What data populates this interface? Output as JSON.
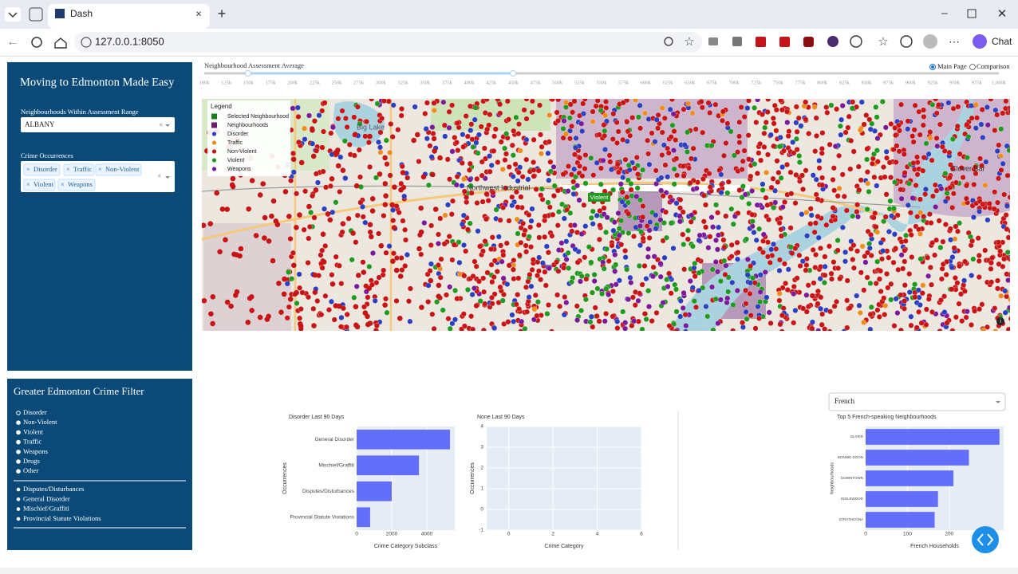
{
  "browser": {
    "tab_title": "Dash",
    "url": "127.0.0.1:8050",
    "chat": "Chat"
  },
  "sidebar": {
    "title": "Moving to Edmonton Made Easy",
    "range_label": "Neighbourhoods Within Assessment Range",
    "neighbourhood": "ALBANY",
    "crime_label": "Crime Occurrences",
    "crime_tags": [
      "Disorder",
      "Traffic",
      "Non-Violent",
      "Violent",
      "Weapons"
    ]
  },
  "filter": {
    "title": "Greater Edmonton Crime Filter",
    "options": [
      "Disorder",
      "Non-Violent",
      "Violent",
      "Traffic",
      "Weapons",
      "Drugs",
      "Other"
    ],
    "sub_options": [
      "Disputes/Disturbances",
      "General Disorder",
      "Mischief/Graffiti",
      "Provincial Statute Violations"
    ]
  },
  "slider": {
    "label": "Neighbourhood Assessment Average",
    "marks": [
      "100k",
      "125k",
      "150k",
      "175k",
      "200k",
      "225k",
      "250k",
      "275k",
      "300k",
      "325k",
      "350k",
      "375k",
      "400k",
      "425k",
      "450k",
      "475k",
      "500k",
      "525k",
      "550k",
      "575k",
      "600k",
      "625k",
      "650k",
      "675k",
      "700k",
      "725k",
      "750k",
      "775k",
      "800k",
      "825k",
      "850k",
      "875k",
      "900k",
      "925k",
      "950k",
      "975k",
      "1,000k"
    ]
  },
  "page_toggle": [
    "Main Page",
    "Comparison"
  ],
  "map": {
    "legend_title": "Legend",
    "legend": [
      {
        "name": "Selected Neighbourhood",
        "color": "#1a7f1a"
      },
      {
        "name": "Neighbourhoods",
        "color": "#6b1e6e"
      },
      {
        "name": "Disorder",
        "color": "#2b3fc0"
      },
      {
        "name": "Traffic",
        "color": "#f08c1a"
      },
      {
        "name": "Non-Violent",
        "color": "#c81414"
      },
      {
        "name": "Violent",
        "color": "#1f9a1f"
      },
      {
        "name": "Weapons",
        "color": "#7a1a9a"
      }
    ],
    "hover": "Violent",
    "places": [
      "Big Lake",
      "Northwest Industrial",
      "Clover Bar"
    ]
  },
  "language": "French",
  "charts": [
    {
      "type": "bar",
      "orientation": "h",
      "title": "Disorder Last 90 Days",
      "color": "#636efa",
      "categories": [
        "General Disorder",
        "Mischief/Graffiti",
        "Disputes/Disturbances",
        "Provincial Statute Violations"
      ],
      "values": [
        5320,
        3550,
        2000,
        770
      ],
      "xlim": [
        0,
        5590
      ],
      "xticks": [
        0,
        2000,
        4000
      ],
      "xlabel": "Crime Category Subclass",
      "ylabel": "Occurrences"
    },
    {
      "type": "bar",
      "orientation": "h",
      "title": "None Last 90 Days",
      "color": "#636efa",
      "categories": [],
      "values": [],
      "xlim": [
        -1,
        6
      ],
      "xticks": [
        0,
        2,
        4,
        6
      ],
      "ylim": [
        -1,
        4
      ],
      "yticks": [
        -1,
        0,
        1,
        2,
        3,
        4
      ],
      "xlabel": "Crime Category",
      "ylabel": "Occurrences"
    },
    {
      "type": "bar",
      "orientation": "h",
      "title": "Top 5 French-speaking Neighbourhoods",
      "color": "#636efa",
      "categories": [
        "OLIVER",
        "BONNIE DOON",
        "DOWNTOWN",
        "INGLEWOOD",
        "STRATHCONA"
      ],
      "values": [
        320,
        247,
        210,
        173,
        165
      ],
      "xlim": [
        0,
        330
      ],
      "xticks": [
        0,
        100,
        200
      ],
      "xlabel": "French Households",
      "ylabel": "Neighbourhoods"
    }
  ]
}
